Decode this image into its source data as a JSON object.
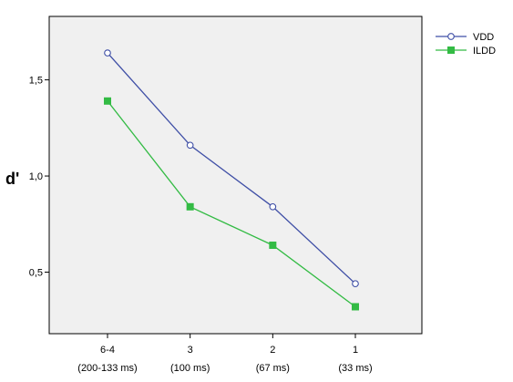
{
  "chart_data": {
    "type": "line",
    "ylabel": "d'",
    "xlabel": "",
    "categories": [
      {
        "line1": "6-4",
        "line2": "(200-133 ms)"
      },
      {
        "line1": "3",
        "line2": "(100 ms)"
      },
      {
        "line1": "2",
        "line2": "(67 ms)"
      },
      {
        "line1": "1",
        "line2": "(33 ms)"
      }
    ],
    "yticks": [
      {
        "value": 0.5,
        "label": "0,5"
      },
      {
        "value": 1.0,
        "label": "1,0"
      },
      {
        "value": 1.5,
        "label": "1,5"
      }
    ],
    "ylim": [
      0.18,
      1.83
    ],
    "grid": false,
    "legend_position": "top-right",
    "plot_background": "#f0f0f0",
    "series": [
      {
        "name": "VDD",
        "color": "#3f4fa6",
        "marker": "open-circle",
        "values": [
          1.64,
          1.16,
          0.84,
          0.44
        ]
      },
      {
        "name": "ILDD",
        "color": "#33bb44",
        "marker": "filled-square",
        "values": [
          1.39,
          0.84,
          0.64,
          0.32
        ]
      }
    ]
  }
}
